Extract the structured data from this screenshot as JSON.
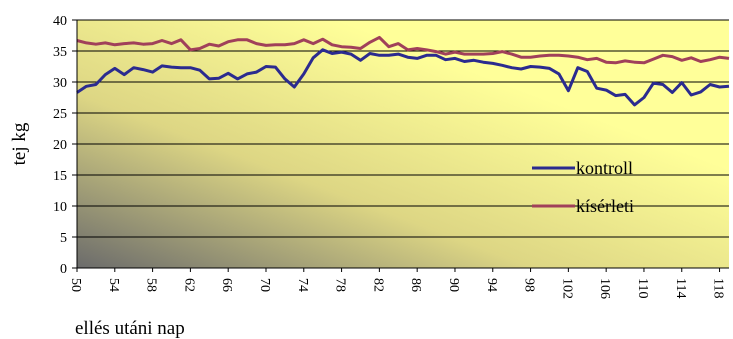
{
  "chart_data": {
    "type": "line",
    "title": "",
    "xlabel": "ellés utáni nap",
    "ylabel": "tej kg",
    "xlim": [
      50,
      119
    ],
    "ylim": [
      0,
      40
    ],
    "yticks": [
      0,
      5,
      10,
      15,
      20,
      25,
      30,
      35,
      40
    ],
    "xticks": [
      50,
      54,
      58,
      62,
      66,
      70,
      74,
      78,
      82,
      86,
      90,
      94,
      98,
      102,
      106,
      110,
      114,
      118
    ],
    "grid": true,
    "legend_position": "right",
    "plot_background": [
      "#6b6b6b",
      "#ffff99"
    ],
    "series": [
      {
        "name": "kontroll",
        "color": "#2b2b8f",
        "x": [
          50,
          51,
          52,
          53,
          54,
          55,
          56,
          57,
          58,
          59,
          60,
          61,
          62,
          63,
          64,
          65,
          66,
          67,
          68,
          69,
          70,
          71,
          72,
          73,
          74,
          75,
          76,
          77,
          78,
          79,
          80,
          81,
          82,
          83,
          84,
          85,
          86,
          87,
          88,
          89,
          90,
          91,
          92,
          93,
          94,
          95,
          96,
          97,
          98,
          99,
          100,
          101,
          102,
          103,
          104,
          105,
          106,
          107,
          108,
          109,
          110,
          111,
          112,
          113,
          114,
          115,
          116,
          117,
          118,
          119
        ],
        "values": [
          28.3,
          29.3,
          29.6,
          31.2,
          32.2,
          31.2,
          32.3,
          32.0,
          31.6,
          32.6,
          32.4,
          32.3,
          32.3,
          31.9,
          30.5,
          30.6,
          31.4,
          30.5,
          31.3,
          31.6,
          32.5,
          32.4,
          30.5,
          29.2,
          31.3,
          33.9,
          35.2,
          34.6,
          34.8,
          34.5,
          33.5,
          34.6,
          34.3,
          34.3,
          34.5,
          34.0,
          33.8,
          34.3,
          34.3,
          33.6,
          33.8,
          33.3,
          33.5,
          33.2,
          33.0,
          32.7,
          32.3,
          32.1,
          32.5,
          32.4,
          32.2,
          31.3,
          28.6,
          32.3,
          31.7,
          29.0,
          28.7,
          27.8,
          28.0,
          26.3,
          27.5,
          29.8,
          29.6,
          28.3,
          29.9,
          27.9,
          28.4,
          29.6,
          29.2,
          29.3
        ]
      },
      {
        "name": "kísérleti",
        "color": "#a0405a",
        "x": [
          50,
          51,
          52,
          53,
          54,
          55,
          56,
          57,
          58,
          59,
          60,
          61,
          62,
          63,
          64,
          65,
          66,
          67,
          68,
          69,
          70,
          71,
          72,
          73,
          74,
          75,
          76,
          77,
          78,
          79,
          80,
          81,
          82,
          83,
          84,
          85,
          86,
          87,
          88,
          89,
          90,
          91,
          92,
          93,
          94,
          95,
          96,
          97,
          98,
          99,
          100,
          101,
          102,
          103,
          104,
          105,
          106,
          107,
          108,
          109,
          110,
          111,
          112,
          113,
          114,
          115,
          116,
          117,
          118,
          119
        ],
        "values": [
          36.7,
          36.3,
          36.1,
          36.3,
          36.0,
          36.2,
          36.3,
          36.1,
          36.2,
          36.7,
          36.2,
          36.8,
          35.2,
          35.4,
          36.1,
          35.8,
          36.5,
          36.8,
          36.8,
          36.2,
          35.9,
          36.0,
          36.0,
          36.2,
          36.8,
          36.2,
          36.9,
          36.0,
          35.7,
          35.6,
          35.4,
          36.4,
          37.2,
          35.7,
          36.2,
          35.2,
          35.4,
          35.2,
          34.9,
          34.5,
          34.8,
          34.5,
          34.5,
          34.5,
          34.6,
          34.9,
          34.5,
          34.0,
          34.0,
          34.2,
          34.3,
          34.3,
          34.2,
          34.0,
          33.6,
          33.8,
          33.2,
          33.1,
          33.4,
          33.2,
          33.1,
          33.7,
          34.3,
          34.1,
          33.5,
          33.9,
          33.3,
          33.6,
          34.0,
          33.8
        ]
      }
    ]
  }
}
